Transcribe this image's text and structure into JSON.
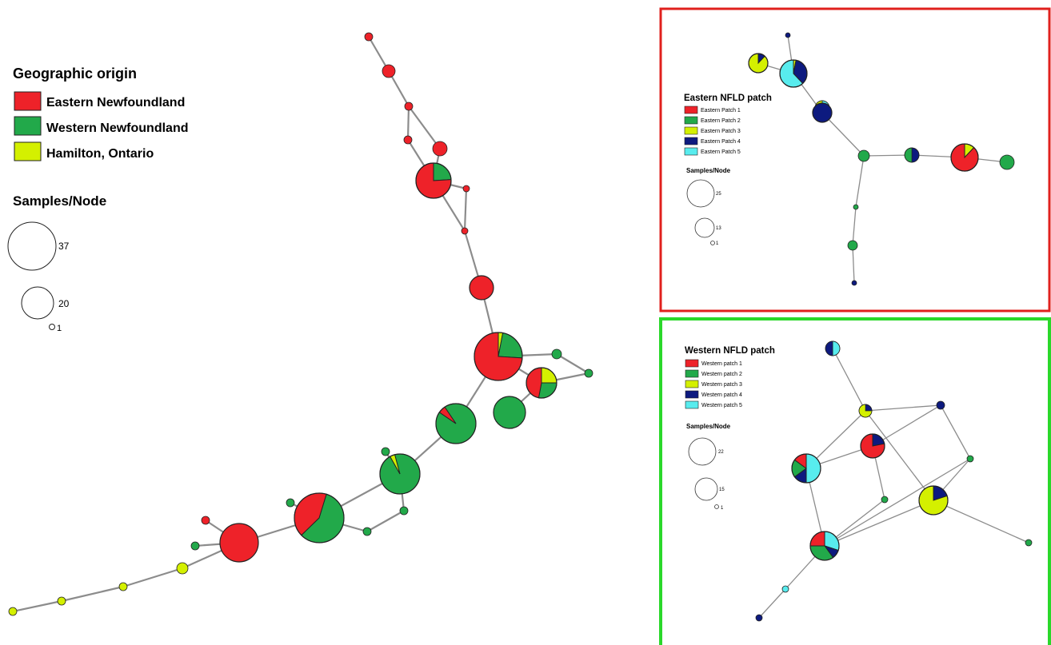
{
  "colors": {
    "east": "#ee2229",
    "west": "#22a94a",
    "hamilton": "#d4f000",
    "patch4": "#0d1a7f",
    "patch5": "#58ecee",
    "edge": "#8c8c8c",
    "eastern_frame": "#e0201d",
    "western_frame": "#2ad82a"
  },
  "main": {
    "legend_title": "Geographic origin",
    "legend": [
      "Eastern Newfoundland",
      "Western Newfoundland",
      "Hamilton, Ontario"
    ],
    "size_title": "Samples/Node",
    "sizes": [
      "37",
      "20",
      "1"
    ]
  },
  "eastern": {
    "title": "Eastern NFLD patch",
    "legend": [
      "Eastern Patch 1",
      "Eastern Patch 2",
      "Eastern Patch 3",
      "Eastern Patch 4",
      "Eastern Patch 5"
    ],
    "size_title": "Samples/Node",
    "sizes": [
      "25",
      "13",
      "1"
    ]
  },
  "western": {
    "title": "Western NFLD patch",
    "legend": [
      "Western patch 1",
      "Western patch 2",
      "Western patch 3",
      "Western patch 4",
      "Western patch 5"
    ],
    "size_title": "Samples/Node",
    "sizes": [
      "22",
      "15",
      "1"
    ]
  }
}
